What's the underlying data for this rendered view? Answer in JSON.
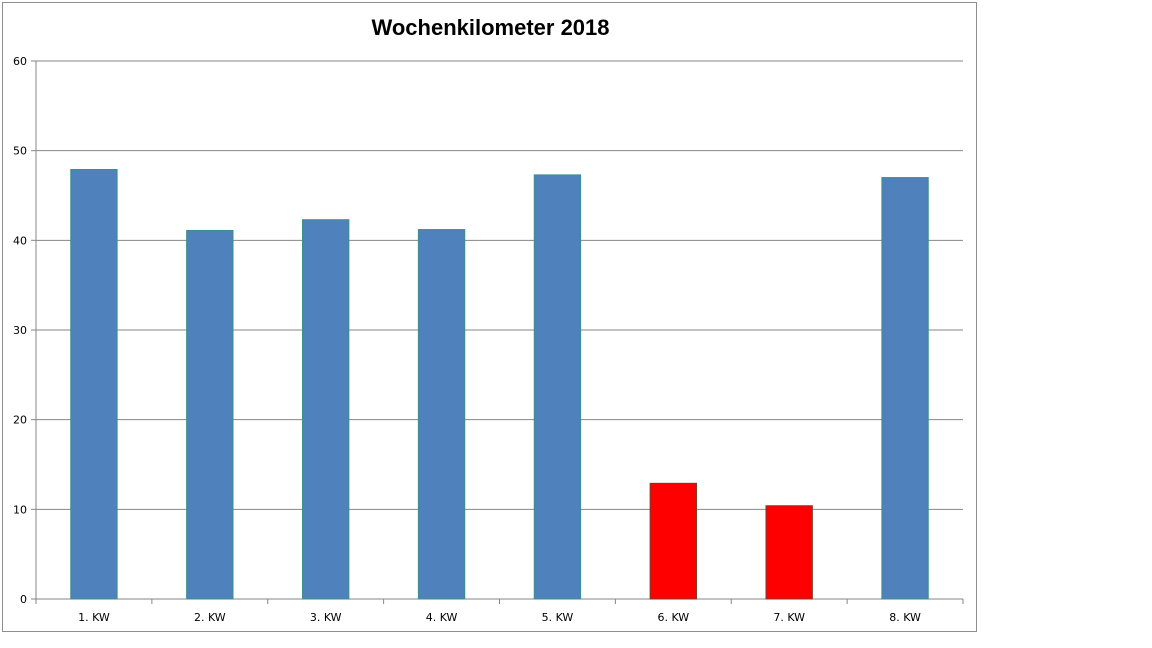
{
  "chart_data": {
    "type": "bar",
    "title": "Wochenkilometer 2018",
    "xlabel": "",
    "ylabel": "",
    "categories": [
      "1. KW",
      "2. KW",
      "3. KW",
      "4. KW",
      "5. KW",
      "6. KW",
      "7. KW",
      "8. KW"
    ],
    "values": [
      47.9,
      41.1,
      42.3,
      41.2,
      47.3,
      12.9,
      10.4,
      47.0
    ],
    "bar_colors": [
      "#4f81bd",
      "#4f81bd",
      "#4f81bd",
      "#4f81bd",
      "#4f81bd",
      "#ff0000",
      "#ff0000",
      "#4f81bd"
    ],
    "ylim": [
      0,
      60
    ],
    "yticks": [
      0,
      10,
      20,
      30,
      40,
      50,
      60
    ],
    "grid": true,
    "legend": "none"
  }
}
